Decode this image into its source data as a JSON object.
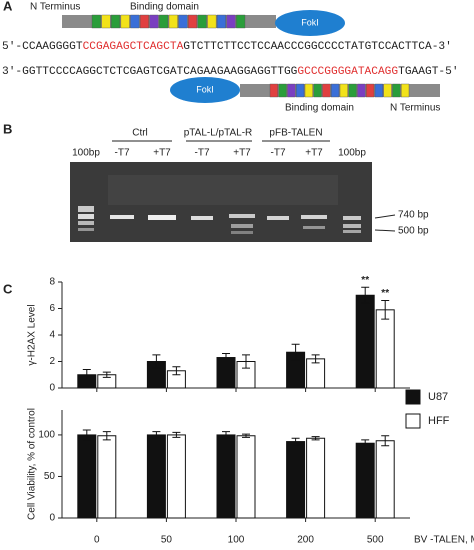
{
  "panel_a": {
    "label": "A",
    "top_talen": {
      "n_terminus": "N Terminus",
      "binding_domain": "Binding domain",
      "foki": "FokI"
    },
    "seq_top": [
      "5'-CCAAGGGGT",
      "CCGAGAGCTCAGCTA",
      "GTCTTCTTCCTCCAACCCGGCCCCTATGTCCACTTCA-3'"
    ],
    "seq_bottom": [
      "3'-GGTTCCCCAGGCTCTCGAGTCGATCAGAAGAAGGAGGTTGG",
      "GCCCGGGGATACAGG",
      "TGAAGT-5'"
    ],
    "bottom_talen": {
      "foki": "FokI",
      "binding_domain": "Binding domain",
      "n_terminus": "N Terminus"
    }
  },
  "panel_b": {
    "label": "B",
    "groups": [
      "Ctrl",
      "pTAL-L/pTAL-R",
      "pFB-TALEN"
    ],
    "lanes": [
      "100bp",
      "-T7",
      "+T7",
      "-T7",
      "+T7",
      "-T7",
      "+T7",
      "100bp"
    ],
    "markers": [
      "740 bp",
      "500 bp"
    ]
  },
  "panel_c_label": "C",
  "chart_data": [
    {
      "type": "bar",
      "y_label": "γ-H2AX Level",
      "ylim": [
        0,
        8
      ],
      "yticks": [
        0,
        2,
        4,
        6,
        8
      ],
      "series": [
        {
          "name": "U87",
          "color": "#111111",
          "values": [
            1.0,
            2.0,
            2.3,
            2.7,
            7.0
          ],
          "errors": [
            0.4,
            0.5,
            0.3,
            0.6,
            0.6
          ]
        },
        {
          "name": "HFF",
          "color": "#ffffff",
          "values": [
            1.0,
            1.3,
            2.0,
            2.2,
            5.9
          ],
          "errors": [
            0.2,
            0.3,
            0.5,
            0.3,
            0.7
          ]
        }
      ],
      "annotations": [
        "**",
        "**"
      ]
    },
    {
      "type": "bar",
      "y_label": "Cell Viability, % of control",
      "x_label": "BV -TALEN, MOI",
      "categories": [
        "0",
        "50",
        "100",
        "200",
        "500"
      ],
      "ylim": [
        0,
        130
      ],
      "yticks": [
        0,
        50,
        100
      ],
      "series": [
        {
          "color": "#111111",
          "values": [
            100,
            100,
            100,
            92,
            90
          ],
          "errors": [
            6,
            4,
            4,
            4,
            4
          ]
        },
        {
          "color": "#ffffff",
          "values": [
            99,
            100,
            99,
            96,
            93
          ],
          "errors": [
            5,
            3,
            2,
            2,
            6
          ]
        }
      ]
    }
  ]
}
